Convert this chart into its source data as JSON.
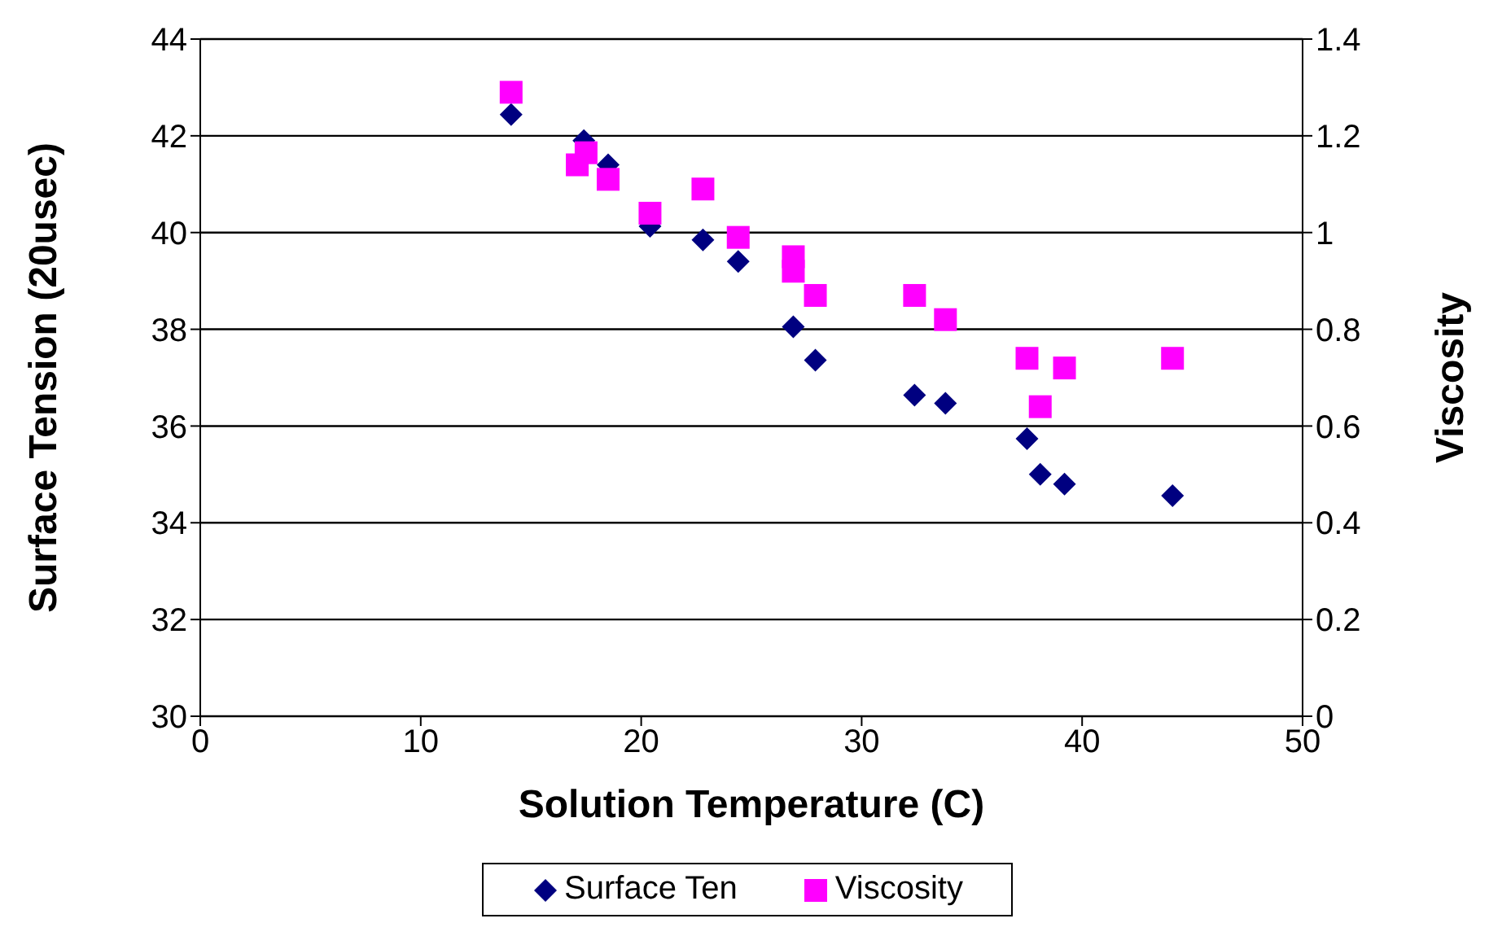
{
  "chart_data": {
    "type": "scatter",
    "xlabel": "Solution Temperature (C)",
    "ylabel": "Surface Tension (20usec)",
    "y2label": "Viscosity",
    "xlim": [
      0,
      50
    ],
    "xticks": [
      0,
      10,
      20,
      30,
      40,
      50
    ],
    "ylim": [
      30,
      44
    ],
    "yticks": [
      30,
      32,
      34,
      36,
      38,
      40,
      42,
      44
    ],
    "y2lim": [
      0,
      1.4
    ],
    "y2ticks": [
      0,
      0.2,
      0.4,
      0.6,
      0.8,
      1,
      1.2,
      1.4
    ],
    "grid": "y",
    "legend": "bottom",
    "series": [
      {
        "name": "Surface Ten",
        "color": "#000080",
        "marker": "diamond",
        "x": [
          14.1,
          17.1,
          17.4,
          18.5,
          20.4,
          22.8,
          24.4,
          26.9,
          27.9,
          32.4,
          33.8,
          37.5,
          38.1,
          39.2,
          44.1
        ],
        "values": [
          42.44,
          null,
          41.9,
          41.4,
          40.13,
          39.85,
          39.4,
          38.05,
          37.36,
          36.64,
          36.47,
          35.74,
          35.0,
          34.8,
          34.56
        ]
      },
      {
        "name": "Viscosity",
        "color": "#ff00ff",
        "marker": "square",
        "axis": "y2",
        "x": [
          14.1,
          17.1,
          17.5,
          18.5,
          20.4,
          22.8,
          24.4,
          26.9,
          26.9,
          27.9,
          32.4,
          33.8,
          37.5,
          38.1,
          39.2,
          44.1
        ],
        "values": [
          1.29,
          1.14,
          1.165,
          1.11,
          1.04,
          1.09,
          0.99,
          0.95,
          0.92,
          0.87,
          0.87,
          0.82,
          0.74,
          0.64,
          0.72,
          0.74
        ]
      }
    ]
  }
}
